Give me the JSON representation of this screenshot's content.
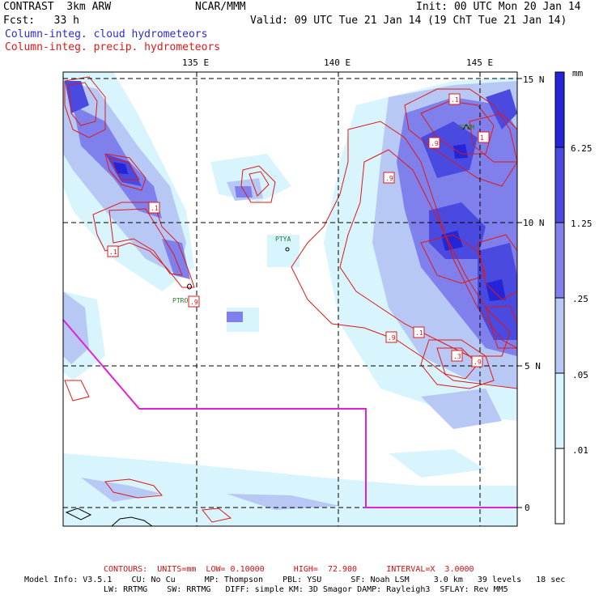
{
  "header": {
    "model": "CONTRAST  3km ARW",
    "center": "NCAR/MMM",
    "init": "Init: 00 UTC Mon 20 Jan 14",
    "fcst": "Fcst:   33 h",
    "valid": "Valid: 09 UTC Tue 21 Jan 14 (19 ChT Tue 21 Jan 14)",
    "field1": "Column-integ. cloud hydrometeors",
    "field2": "Column-integ. precip. hydrometeors"
  },
  "axes": {
    "lon_labels": [
      "135 E",
      "140 E",
      "145 E"
    ],
    "lat_labels": [
      "15 N",
      "10 N",
      "5 N",
      "0"
    ]
  },
  "colorbar": {
    "unit": "mm",
    "labels": [
      "6.25",
      "1.25",
      ".25",
      ".05",
      ".01"
    ],
    "colors": [
      "#2424d8",
      "#4a4ae0",
      "#8080ec",
      "#b8c8f4",
      "#d8f4fc",
      "#ffffff"
    ]
  },
  "stations": [
    "PTKM",
    "PTYA",
    "PTRO"
  ],
  "contour_labels": [
    ".1",
    ".1",
    ".9",
    ".9",
    ".1",
    ".1",
    "1",
    ".9",
    ".9",
    ".3",
    ".9"
  ],
  "footer": {
    "contours": "CONTOURS:  UNITS=mm  LOW= 0.10000      HIGH=  72.900      INTERVAL=X  3.0000",
    "model_info_1": "Model Info: V3.5.1    CU: No Cu      MP: Thompson    PBL: YSU      SF: Noah LSM     3.0 km   39 levels   18 sec",
    "model_info_2": "LW: RRTMG    SW: RRTMG   DIFF: simple KM: 3D Smagor DAMP: Rayleigh3  SFLAY: Rev MM5"
  }
}
